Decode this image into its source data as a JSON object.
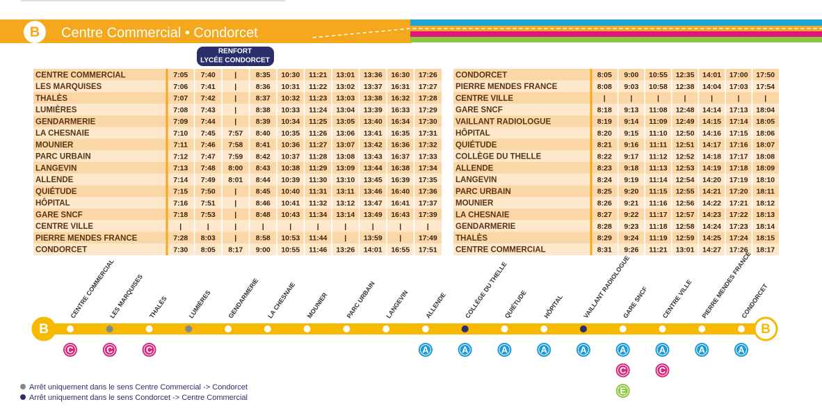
{
  "header": {
    "badge": "B",
    "title": "Centre Commercial • Condorcet"
  },
  "left_table": {
    "note": [
      "RENFORT",
      "LYCÉE CONDORCET"
    ],
    "rows": [
      {
        "stop": "CENTRE COMMERCIAL",
        "times": [
          "7:05",
          "7:40",
          "|",
          "8:35",
          "10:30",
          "11:21",
          "13:01",
          "13:36",
          "16:30",
          "17:26"
        ]
      },
      {
        "stop": "LES MARQUISES",
        "times": [
          "7:06",
          "7:41",
          "|",
          "8:36",
          "10:31",
          "11:22",
          "13:02",
          "13:37",
          "16:31",
          "17:27"
        ]
      },
      {
        "stop": "THALÈS",
        "times": [
          "7:07",
          "7:42",
          "|",
          "8:37",
          "10:32",
          "11:23",
          "13:03",
          "13:38",
          "16:32",
          "17:28"
        ]
      },
      {
        "stop": "LUMIÈRES",
        "times": [
          "7:08",
          "7:43",
          "|",
          "8:38",
          "10:33",
          "11:24",
          "13:04",
          "13:39",
          "16:33",
          "17:29"
        ]
      },
      {
        "stop": "GENDARMERIE",
        "times": [
          "7:09",
          "7:44",
          "|",
          "8:39",
          "10:34",
          "11:25",
          "13:05",
          "13:40",
          "16:34",
          "17:30"
        ]
      },
      {
        "stop": "LA CHESNAIE",
        "times": [
          "7:10",
          "7:45",
          "7:57",
          "8:40",
          "10:35",
          "11:26",
          "13:06",
          "13:41",
          "16:35",
          "17:31"
        ]
      },
      {
        "stop": "MOUNIER",
        "times": [
          "7:11",
          "7:46",
          "7:58",
          "8:41",
          "10:36",
          "11:27",
          "13:07",
          "13:42",
          "16:36",
          "17:32"
        ]
      },
      {
        "stop": "PARC URBAIN",
        "times": [
          "7:12",
          "7:47",
          "7:59",
          "8:42",
          "10:37",
          "11:28",
          "13:08",
          "13:43",
          "16:37",
          "17:33"
        ]
      },
      {
        "stop": "LANGEVIN",
        "times": [
          "7:13",
          "7:48",
          "8:00",
          "8:43",
          "10:38",
          "11:29",
          "13:09",
          "13:44",
          "16:38",
          "17:34"
        ]
      },
      {
        "stop": "ALLENDE",
        "times": [
          "7:14",
          "7:49",
          "8:01",
          "8:44",
          "10:39",
          "11:30",
          "13:10",
          "13:45",
          "16:39",
          "17:35"
        ]
      },
      {
        "stop": "QUIÉTUDE",
        "times": [
          "7:15",
          "7:50",
          "|",
          "8:45",
          "10:40",
          "11:31",
          "13:11",
          "13:46",
          "16:40",
          "17:36"
        ]
      },
      {
        "stop": "HÔPITAL",
        "times": [
          "7:16",
          "7:51",
          "|",
          "8:46",
          "10:41",
          "11:32",
          "13:12",
          "13:47",
          "16:41",
          "17:37"
        ]
      },
      {
        "stop": "GARE SNCF",
        "times": [
          "7:18",
          "7:53",
          "|",
          "8:48",
          "10:43",
          "11:34",
          "13:14",
          "13:49",
          "16:43",
          "17:39"
        ]
      },
      {
        "stop": "CENTRE VILLE",
        "times": [
          "|",
          "|",
          "|",
          "|",
          "|",
          "|",
          "|",
          "|",
          "|",
          "|"
        ]
      },
      {
        "stop": "PIERRE MENDES FRANCE",
        "times": [
          "7:28",
          "8:03",
          "|",
          "8:58",
          "10:53",
          "11:44",
          "|",
          "13:59",
          "|",
          "17:49"
        ]
      },
      {
        "stop": "CONDORCET",
        "times": [
          "7:30",
          "8:05",
          "8:17",
          "9:00",
          "10:55",
          "11:46",
          "13:26",
          "14:01",
          "16:55",
          "17:51"
        ]
      }
    ]
  },
  "right_table": {
    "rows": [
      {
        "stop": "CONDORCET",
        "times": [
          "8:05",
          "9:00",
          "10:55",
          "12:35",
          "14:01",
          "17:00",
          "17:50"
        ]
      },
      {
        "stop": "PIERRE MENDES FRANCE",
        "times": [
          "8:08",
          "9:03",
          "10:58",
          "12:38",
          "14:04",
          "17:03",
          "17:54"
        ]
      },
      {
        "stop": "CENTRE VILLE",
        "times": [
          "|",
          "|",
          "|",
          "|",
          "|",
          "|",
          "|"
        ]
      },
      {
        "stop": "GARE SNCF",
        "times": [
          "8:18",
          "9:13",
          "11:08",
          "12:48",
          "14:14",
          "17:13",
          "18:04"
        ]
      },
      {
        "stop": "VAILLANT RADIOLOGUE",
        "times": [
          "8:19",
          "9:14",
          "11:09",
          "12:49",
          "14:15",
          "17:14",
          "18:05"
        ]
      },
      {
        "stop": "HÔPITAL",
        "times": [
          "8:20",
          "9:15",
          "11:10",
          "12:50",
          "14:16",
          "17:15",
          "18:06"
        ]
      },
      {
        "stop": "QUIÉTUDE",
        "times": [
          "8:21",
          "9:16",
          "11:11",
          "12:51",
          "14:17",
          "17:16",
          "18:07"
        ]
      },
      {
        "stop": "COLLÈGE DU THELLE",
        "times": [
          "8:22",
          "9:17",
          "11:12",
          "12:52",
          "14:18",
          "17:17",
          "18:08"
        ]
      },
      {
        "stop": "ALLENDE",
        "times": [
          "8:23",
          "9:18",
          "11:13",
          "12:53",
          "14:19",
          "17:18",
          "18:09"
        ]
      },
      {
        "stop": "LANGEVIN",
        "times": [
          "8:24",
          "9:19",
          "11:14",
          "12:54",
          "14:20",
          "17:19",
          "18:10"
        ]
      },
      {
        "stop": "PARC URBAIN",
        "times": [
          "8:25",
          "9:20",
          "11:15",
          "12:55",
          "14:21",
          "17:20",
          "18:11"
        ]
      },
      {
        "stop": "MOUNIER",
        "times": [
          "8:26",
          "9:21",
          "11:16",
          "12:56",
          "14:22",
          "17:21",
          "18:12"
        ]
      },
      {
        "stop": "LA CHESNAIE",
        "times": [
          "8:27",
          "9:22",
          "11:17",
          "12:57",
          "14:23",
          "17:22",
          "18:13"
        ]
      },
      {
        "stop": "GENDARMERIE",
        "times": [
          "8:28",
          "9:23",
          "11:18",
          "12:58",
          "14:24",
          "17:23",
          "18:14"
        ]
      },
      {
        "stop": "THALÈS",
        "times": [
          "8:29",
          "9:24",
          "11:19",
          "12:59",
          "14:25",
          "17:24",
          "18:15"
        ]
      },
      {
        "stop": "CENTRE COMMERCIAL",
        "times": [
          "8:31",
          "9:26",
          "11:21",
          "13:01",
          "14:27",
          "17:26",
          "18:17"
        ]
      }
    ]
  },
  "line_map": {
    "line_colors": {
      "A": "#1a9ad7",
      "C": "#d6287f",
      "E": "#8dc63f"
    },
    "stops": [
      {
        "name": "CENTRE COMMERCIAL",
        "dot": "#ffffff",
        "lines": [
          "C"
        ]
      },
      {
        "name": "LES MARQUISES",
        "dot": "#7d8a90",
        "lines": [
          "C"
        ]
      },
      {
        "name": "THALÈS",
        "dot": "#ffffff",
        "lines": [
          "C"
        ]
      },
      {
        "name": "LUMIÈRES",
        "dot": "#7d8a90",
        "lines": []
      },
      {
        "name": "GENDARMERIE",
        "dot": "#ffffff",
        "lines": []
      },
      {
        "name": "LA CHESNAIE",
        "dot": "#ffffff",
        "lines": []
      },
      {
        "name": "MOUNIER",
        "dot": "#ffffff",
        "lines": []
      },
      {
        "name": "PARC URBAIN",
        "dot": "#ffffff",
        "lines": []
      },
      {
        "name": "LANGEVIN",
        "dot": "#ffffff",
        "lines": []
      },
      {
        "name": "ALLENDE",
        "dot": "#ffffff",
        "lines": [
          "A"
        ]
      },
      {
        "name": "COLLÈGE DU THELLE",
        "dot": "#2a2f6b",
        "lines": [
          "A"
        ]
      },
      {
        "name": "QUIÉTUDE",
        "dot": "#ffffff",
        "lines": [
          "A"
        ]
      },
      {
        "name": "HÔPITAL",
        "dot": "#ffffff",
        "lines": [
          "A"
        ]
      },
      {
        "name": "VAILLANT RADIOLOGUE",
        "dot": "#2a2f6b",
        "lines": [
          "A"
        ]
      },
      {
        "name": "GARE SNCF",
        "dot": "#ffffff",
        "lines": [
          "A",
          "C",
          "E"
        ]
      },
      {
        "name": "CENTRE VILLE",
        "dot": "#ffffff",
        "lines": [
          "A",
          "C"
        ]
      },
      {
        "name": "PIERRE MENDES FRANCE",
        "dot": "#ffffff",
        "lines": [
          "A"
        ]
      },
      {
        "name": "CONDORCET",
        "dot": "#ffffff",
        "lines": [
          "A"
        ]
      }
    ]
  },
  "legend": [
    {
      "color": "#7d8a90",
      "text": "Arrêt uniquement dans le sens Centre Commercial -> Condorcet"
    },
    {
      "color": "#2a2f6b",
      "text": "Arrêt uniquement dans le sens Condorcet -> Centre Commercial"
    }
  ]
}
